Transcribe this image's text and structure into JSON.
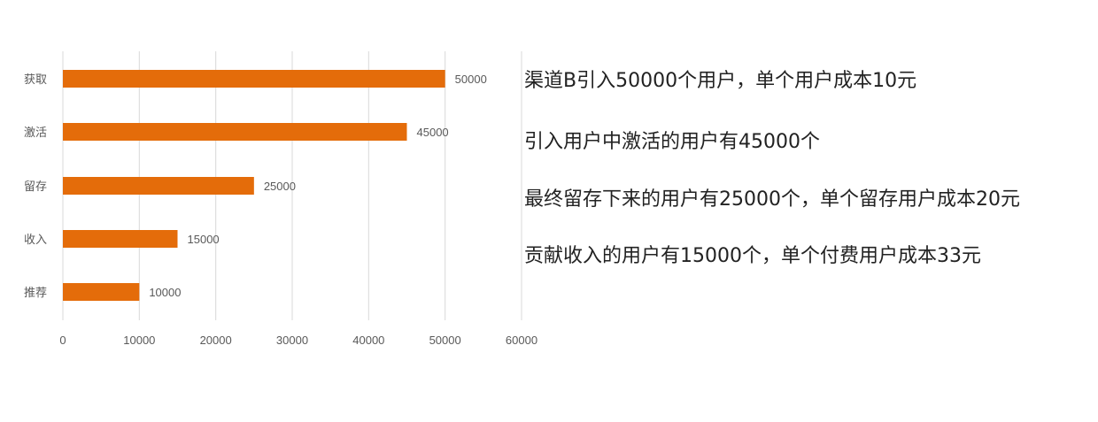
{
  "chart_data": {
    "type": "bar",
    "orientation": "horizontal",
    "categories": [
      "获取",
      "激活",
      "留存",
      "收入",
      "推荐"
    ],
    "values": [
      50000,
      45000,
      25000,
      15000,
      10000
    ],
    "data_labels": [
      "50000",
      "45000",
      "25000",
      "15000",
      "10000"
    ],
    "xlim": [
      0,
      60000
    ],
    "x_ticks": [
      "0",
      "10000",
      "20000",
      "30000",
      "40000",
      "50000",
      "60000"
    ],
    "grid": "vertical",
    "bar_color": "#E46C0A",
    "grid_color": "#D9D9D9",
    "label_color": "#595959"
  },
  "notes": [
    "渠道B引入50000个用户，单个用户成本10元",
    "引入用户中激活的用户有45000个",
    "最终留存下来的用户有25000个，单个留存用户成本20元",
    "贡献收入的用户有15000个，单个付费用户成本33元"
  ]
}
